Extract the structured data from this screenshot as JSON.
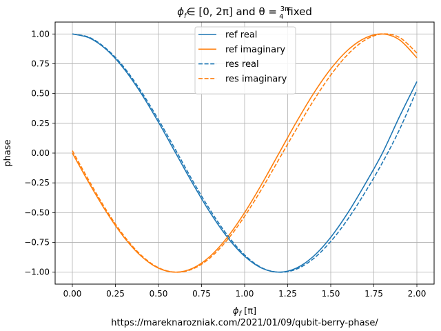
{
  "chart_data": {
    "type": "line",
    "title_parts": {
      "phi": "ϕ",
      "phi_sub": "f",
      "interval": "∈ [0, 2π] and θ = ",
      "frac_num": "3π",
      "frac_den": "4",
      "suffix": " fixed"
    },
    "xlabel_parts": {
      "phi": "ϕ",
      "phi_sub": "f",
      "unit": " [π]"
    },
    "ylabel": "phase",
    "xlim": [
      -0.1,
      2.1
    ],
    "ylim": [
      -1.1,
      1.1
    ],
    "xticks": [
      0.0,
      0.25,
      0.5,
      0.75,
      1.0,
      1.25,
      1.5,
      1.75,
      2.0
    ],
    "xtick_labels": [
      "0.00",
      "0.25",
      "0.50",
      "0.75",
      "1.00",
      "1.25",
      "1.50",
      "1.75",
      "2.00"
    ],
    "yticks": [
      -1.0,
      -0.75,
      -0.5,
      -0.25,
      0.0,
      0.25,
      0.5,
      0.75,
      1.0
    ],
    "ytick_labels": [
      "−1.00",
      "−0.75",
      "−0.50",
      "−0.25",
      "0.00",
      "0.25",
      "0.50",
      "0.75",
      "1.00"
    ],
    "grid": true,
    "legend_placement": "top-center",
    "footer": "https://mareknarozniak.com/2021/01/09/qubit-berry-phase/",
    "series": [
      {
        "name": "ref real",
        "color": "#1f77b4",
        "style": "solid",
        "x": [
          0.0,
          0.1,
          0.2,
          0.3,
          0.4,
          0.5,
          0.6,
          0.7,
          0.8,
          0.9,
          1.0,
          1.1,
          1.2,
          1.3,
          1.4,
          1.5,
          1.6,
          1.7,
          1.8,
          1.9,
          2.0
        ],
        "y": [
          1.0,
          0.966,
          0.866,
          0.707,
          0.5,
          0.259,
          0.0,
          -0.259,
          -0.5,
          -0.707,
          -0.866,
          -0.966,
          -1.0,
          -0.966,
          -0.866,
          -0.707,
          -0.5,
          -0.259,
          0.0,
          0.309,
          0.6
        ]
      },
      {
        "name": "ref imaginary",
        "color": "#ff7f0e",
        "style": "solid",
        "x": [
          0.0,
          0.1,
          0.2,
          0.3,
          0.4,
          0.5,
          0.6,
          0.7,
          0.8,
          0.9,
          1.0,
          1.1,
          1.2,
          1.3,
          1.4,
          1.5,
          1.6,
          1.7,
          1.8,
          1.9,
          2.0
        ],
        "y": [
          0.0,
          -0.259,
          -0.5,
          -0.707,
          -0.866,
          -0.966,
          -1.0,
          -0.966,
          -0.866,
          -0.707,
          -0.5,
          -0.259,
          0.0,
          0.259,
          0.5,
          0.707,
          0.866,
          0.966,
          1.0,
          0.95,
          0.8
        ]
      },
      {
        "name": "res real",
        "color": "#1f77b4",
        "style": "dashed",
        "x": [
          0.0,
          0.1,
          0.2,
          0.3,
          0.4,
          0.5,
          0.6,
          0.7,
          0.8,
          0.9,
          1.0,
          1.1,
          1.2,
          1.3,
          1.4,
          1.5,
          1.6,
          1.7,
          1.8,
          1.9,
          2.0
        ],
        "y": [
          1.0,
          0.97,
          0.873,
          0.72,
          0.517,
          0.28,
          0.025,
          -0.236,
          -0.478,
          -0.689,
          -0.855,
          -0.963,
          -1.0,
          -0.975,
          -0.886,
          -0.742,
          -0.553,
          -0.328,
          -0.08,
          0.2,
          0.53
        ]
      },
      {
        "name": "res imaginary",
        "color": "#ff7f0e",
        "style": "dashed",
        "x": [
          0.0,
          0.1,
          0.2,
          0.3,
          0.4,
          0.5,
          0.6,
          0.7,
          0.8,
          0.9,
          1.0,
          1.1,
          1.2,
          1.3,
          1.4,
          1.5,
          1.6,
          1.7,
          1.8,
          1.9,
          2.0
        ],
        "y": [
          0.02,
          -0.24,
          -0.485,
          -0.695,
          -0.858,
          -0.962,
          -1.0,
          -0.972,
          -0.879,
          -0.728,
          -0.53,
          -0.3,
          -0.05,
          0.2,
          0.44,
          0.655,
          0.83,
          0.95,
          1.0,
          0.97,
          0.84
        ]
      }
    ]
  }
}
